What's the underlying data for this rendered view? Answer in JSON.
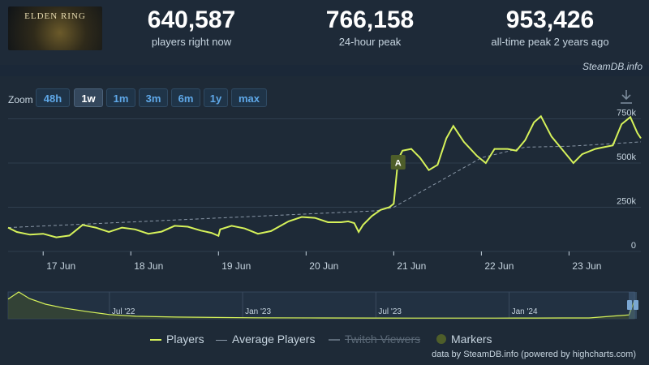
{
  "app": {
    "logo_text": "ELDEN RING"
  },
  "stats": [
    {
      "value": "640,587",
      "label": "players right now"
    },
    {
      "value": "766,158",
      "label": "24-hour peak"
    },
    {
      "value": "953,426",
      "label": "all-time peak 2 years ago"
    }
  ],
  "credit_top": "SteamDB.info",
  "zoom": {
    "label": "Zoom",
    "buttons": [
      "48h",
      "1w",
      "1m",
      "3m",
      "6m",
      "1y",
      "max"
    ],
    "active": "1w"
  },
  "download_icon": "download-icon",
  "colors": {
    "players": "#d6f25a",
    "average": "#8a98a8",
    "marker": "#4e5e2a",
    "background": "#1b2838"
  },
  "legend": [
    "Players",
    "Average Players",
    "Twitch Viewers",
    "Markers"
  ],
  "credit_bottom": "data by SteamDB.info (powered by highcharts.com)",
  "chart_data": [
    {
      "type": "line",
      "series_names": [
        "Players",
        "Average Players"
      ],
      "x_labels": [
        "17 Jun",
        "18 Jun",
        "19 Jun",
        "20 Jun",
        "21 Jun",
        "22 Jun",
        "23 Jun"
      ],
      "y_labels": [
        "0",
        "250k",
        "500k",
        "750k"
      ],
      "ylim": [
        0,
        780000
      ],
      "grid": true,
      "marker": {
        "label": "A",
        "day": 21.05
      },
      "players": [
        [
          16.6,
          135000
        ],
        [
          16.7,
          110000
        ],
        [
          16.85,
          95000
        ],
        [
          17.0,
          100000
        ],
        [
          17.15,
          80000
        ],
        [
          17.3,
          90000
        ],
        [
          17.45,
          150000
        ],
        [
          17.6,
          135000
        ],
        [
          17.75,
          110000
        ],
        [
          17.9,
          135000
        ],
        [
          18.05,
          125000
        ],
        [
          18.2,
          100000
        ],
        [
          18.35,
          112000
        ],
        [
          18.5,
          145000
        ],
        [
          18.65,
          140000
        ],
        [
          18.8,
          118000
        ],
        [
          18.92,
          105000
        ],
        [
          19.0,
          88000
        ],
        [
          19.02,
          125000
        ],
        [
          19.15,
          145000
        ],
        [
          19.3,
          130000
        ],
        [
          19.45,
          100000
        ],
        [
          19.6,
          115000
        ],
        [
          19.8,
          170000
        ],
        [
          19.95,
          195000
        ],
        [
          20.1,
          190000
        ],
        [
          20.25,
          165000
        ],
        [
          20.4,
          165000
        ],
        [
          20.48,
          170000
        ],
        [
          20.55,
          160000
        ],
        [
          20.6,
          110000
        ],
        [
          20.65,
          150000
        ],
        [
          20.75,
          200000
        ],
        [
          20.85,
          235000
        ],
        [
          20.95,
          250000
        ],
        [
          21.0,
          270000
        ],
        [
          21.05,
          520000
        ],
        [
          21.1,
          570000
        ],
        [
          21.2,
          580000
        ],
        [
          21.3,
          530000
        ],
        [
          21.4,
          460000
        ],
        [
          21.5,
          490000
        ],
        [
          21.6,
          640000
        ],
        [
          21.68,
          710000
        ],
        [
          21.8,
          620000
        ],
        [
          21.95,
          540000
        ],
        [
          22.05,
          500000
        ],
        [
          22.15,
          580000
        ],
        [
          22.3,
          580000
        ],
        [
          22.4,
          570000
        ],
        [
          22.5,
          630000
        ],
        [
          22.6,
          730000
        ],
        [
          22.68,
          765000
        ],
        [
          22.8,
          650000
        ],
        [
          22.95,
          560000
        ],
        [
          23.05,
          500000
        ],
        [
          23.15,
          550000
        ],
        [
          23.3,
          580000
        ],
        [
          23.4,
          590000
        ],
        [
          23.5,
          600000
        ],
        [
          23.6,
          720000
        ],
        [
          23.7,
          760000
        ],
        [
          23.78,
          670000
        ],
        [
          23.82,
          640000
        ]
      ],
      "average": [
        [
          16.6,
          135000
        ],
        [
          20.8,
          230000
        ],
        [
          21.0,
          250000
        ],
        [
          21.5,
          390000
        ],
        [
          22.0,
          530000
        ],
        [
          22.5,
          590000
        ],
        [
          23.0,
          595000
        ],
        [
          23.5,
          610000
        ],
        [
          23.82,
          620000
        ]
      ]
    },
    {
      "type": "area",
      "x_labels": [
        "Jul '22",
        "Jan '23",
        "Jul '23",
        "Jan '24"
      ],
      "players": [
        [
          2022.12,
          700000
        ],
        [
          2022.16,
          953426
        ],
        [
          2022.2,
          720000
        ],
        [
          2022.26,
          520000
        ],
        [
          2022.33,
          380000
        ],
        [
          2022.42,
          250000
        ],
        [
          2022.5,
          150000
        ],
        [
          2022.6,
          90000
        ],
        [
          2022.75,
          60000
        ],
        [
          2022.9,
          45000
        ],
        [
          2023.05,
          35000
        ],
        [
          2023.3,
          28000
        ],
        [
          2023.5,
          25000
        ],
        [
          2023.7,
          24000
        ],
        [
          2023.95,
          22000
        ],
        [
          2024.1,
          26000
        ],
        [
          2024.2,
          30000
        ],
        [
          2024.3,
          28000
        ],
        [
          2024.45,
          140000
        ],
        [
          2024.47,
          640587
        ]
      ]
    }
  ]
}
